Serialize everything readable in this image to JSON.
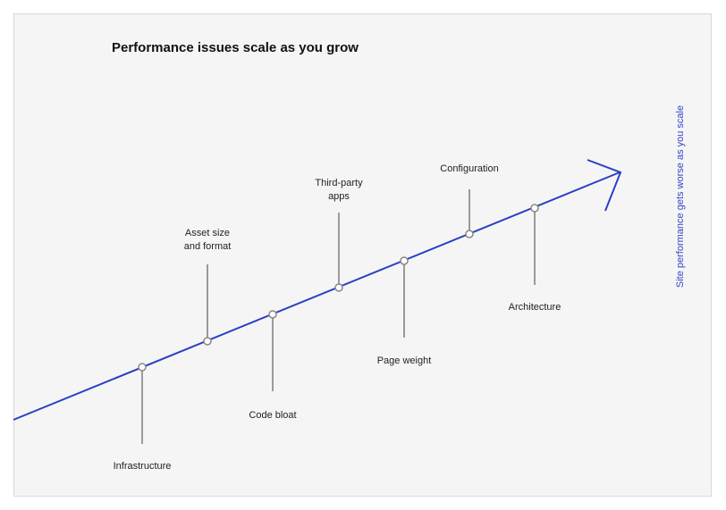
{
  "title": "Performance issues scale as you grow",
  "side_label": "Site performance gets worse as you scale",
  "colors": {
    "trend": "#2a3fc4",
    "stem": "#9a9a9a",
    "node": "#888888",
    "side_label": "#3346c8"
  },
  "issues": [
    {
      "id": "infrastructure",
      "lines": [
        "Infrastructure"
      ]
    },
    {
      "id": "asset-size",
      "lines": [
        "Asset size",
        "and format"
      ]
    },
    {
      "id": "code-bloat",
      "lines": [
        "Code bloat"
      ]
    },
    {
      "id": "third-party",
      "lines": [
        "Third-party",
        "apps"
      ]
    },
    {
      "id": "page-weight",
      "lines": [
        "Page weight"
      ]
    },
    {
      "id": "configuration",
      "lines": [
        "Configuration"
      ]
    },
    {
      "id": "architecture",
      "lines": [
        "Architecture"
      ]
    }
  ]
}
